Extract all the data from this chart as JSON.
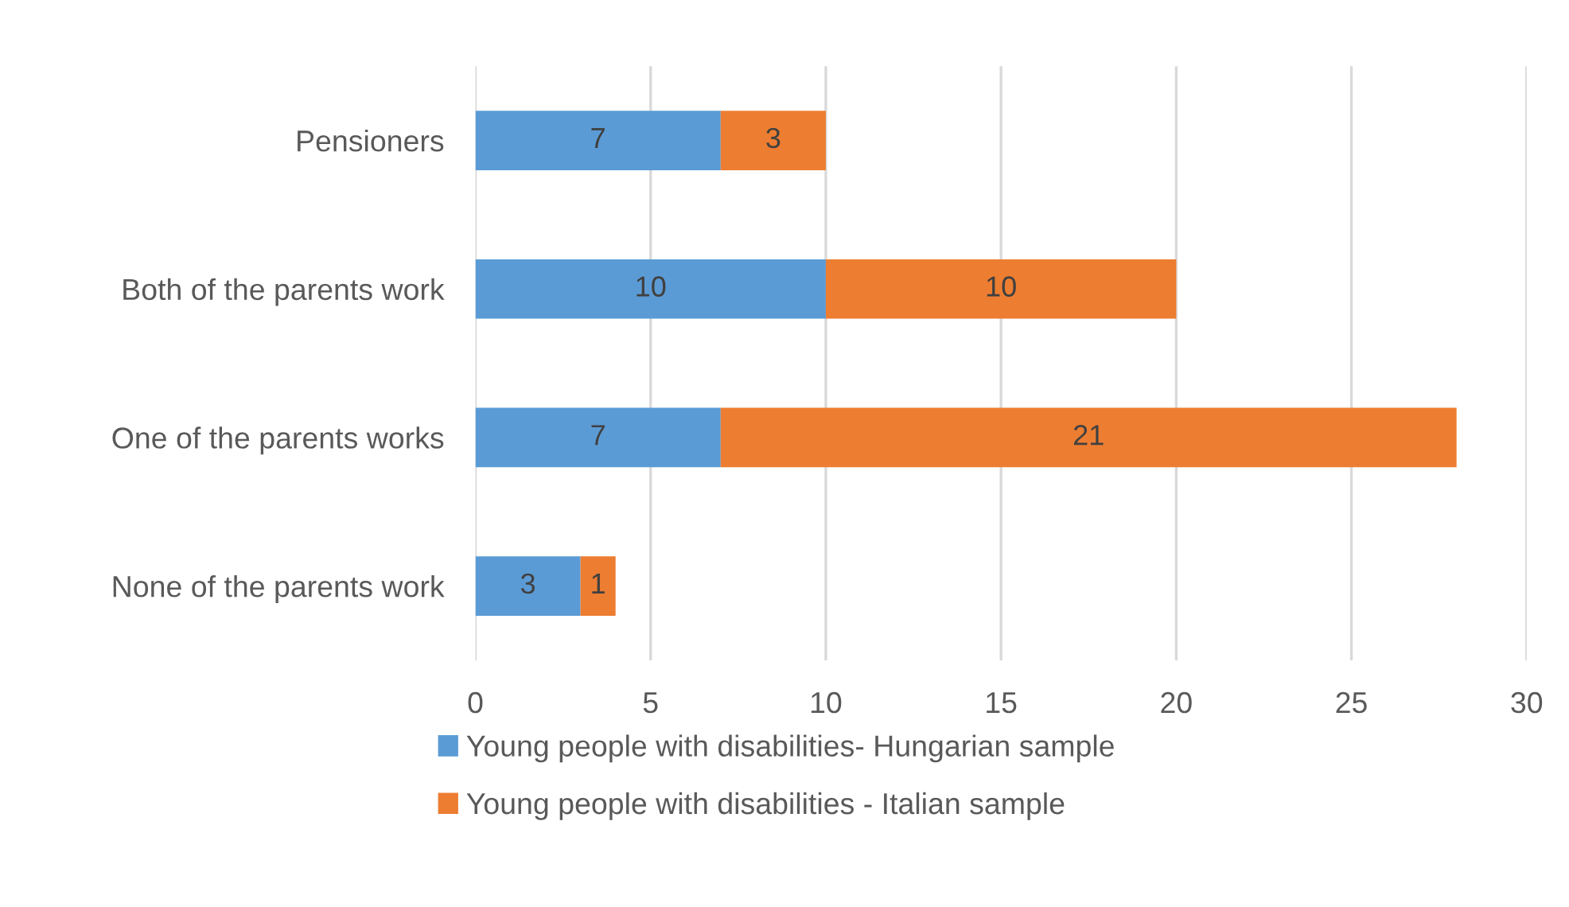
{
  "chart_data": {
    "type": "bar",
    "orientation": "horizontal",
    "stacked": true,
    "categories": [
      "Pensioners",
      "Both of the parents work",
      "One of the parents works",
      "None of the parents work"
    ],
    "series": [
      {
        "name": "Young people with disabilities- Hungarian sample",
        "color": "#5b9bd5",
        "values": [
          7,
          10,
          7,
          3
        ]
      },
      {
        "name": "Young people with disabilities - Italian sample",
        "color": "#ed7d31",
        "values": [
          3,
          10,
          21,
          1
        ]
      }
    ],
    "xlim": [
      0,
      30
    ],
    "xticks": [
      0,
      5,
      10,
      15,
      20,
      25,
      30
    ],
    "grid": "x",
    "legend": "bottom",
    "data_labels": true
  }
}
